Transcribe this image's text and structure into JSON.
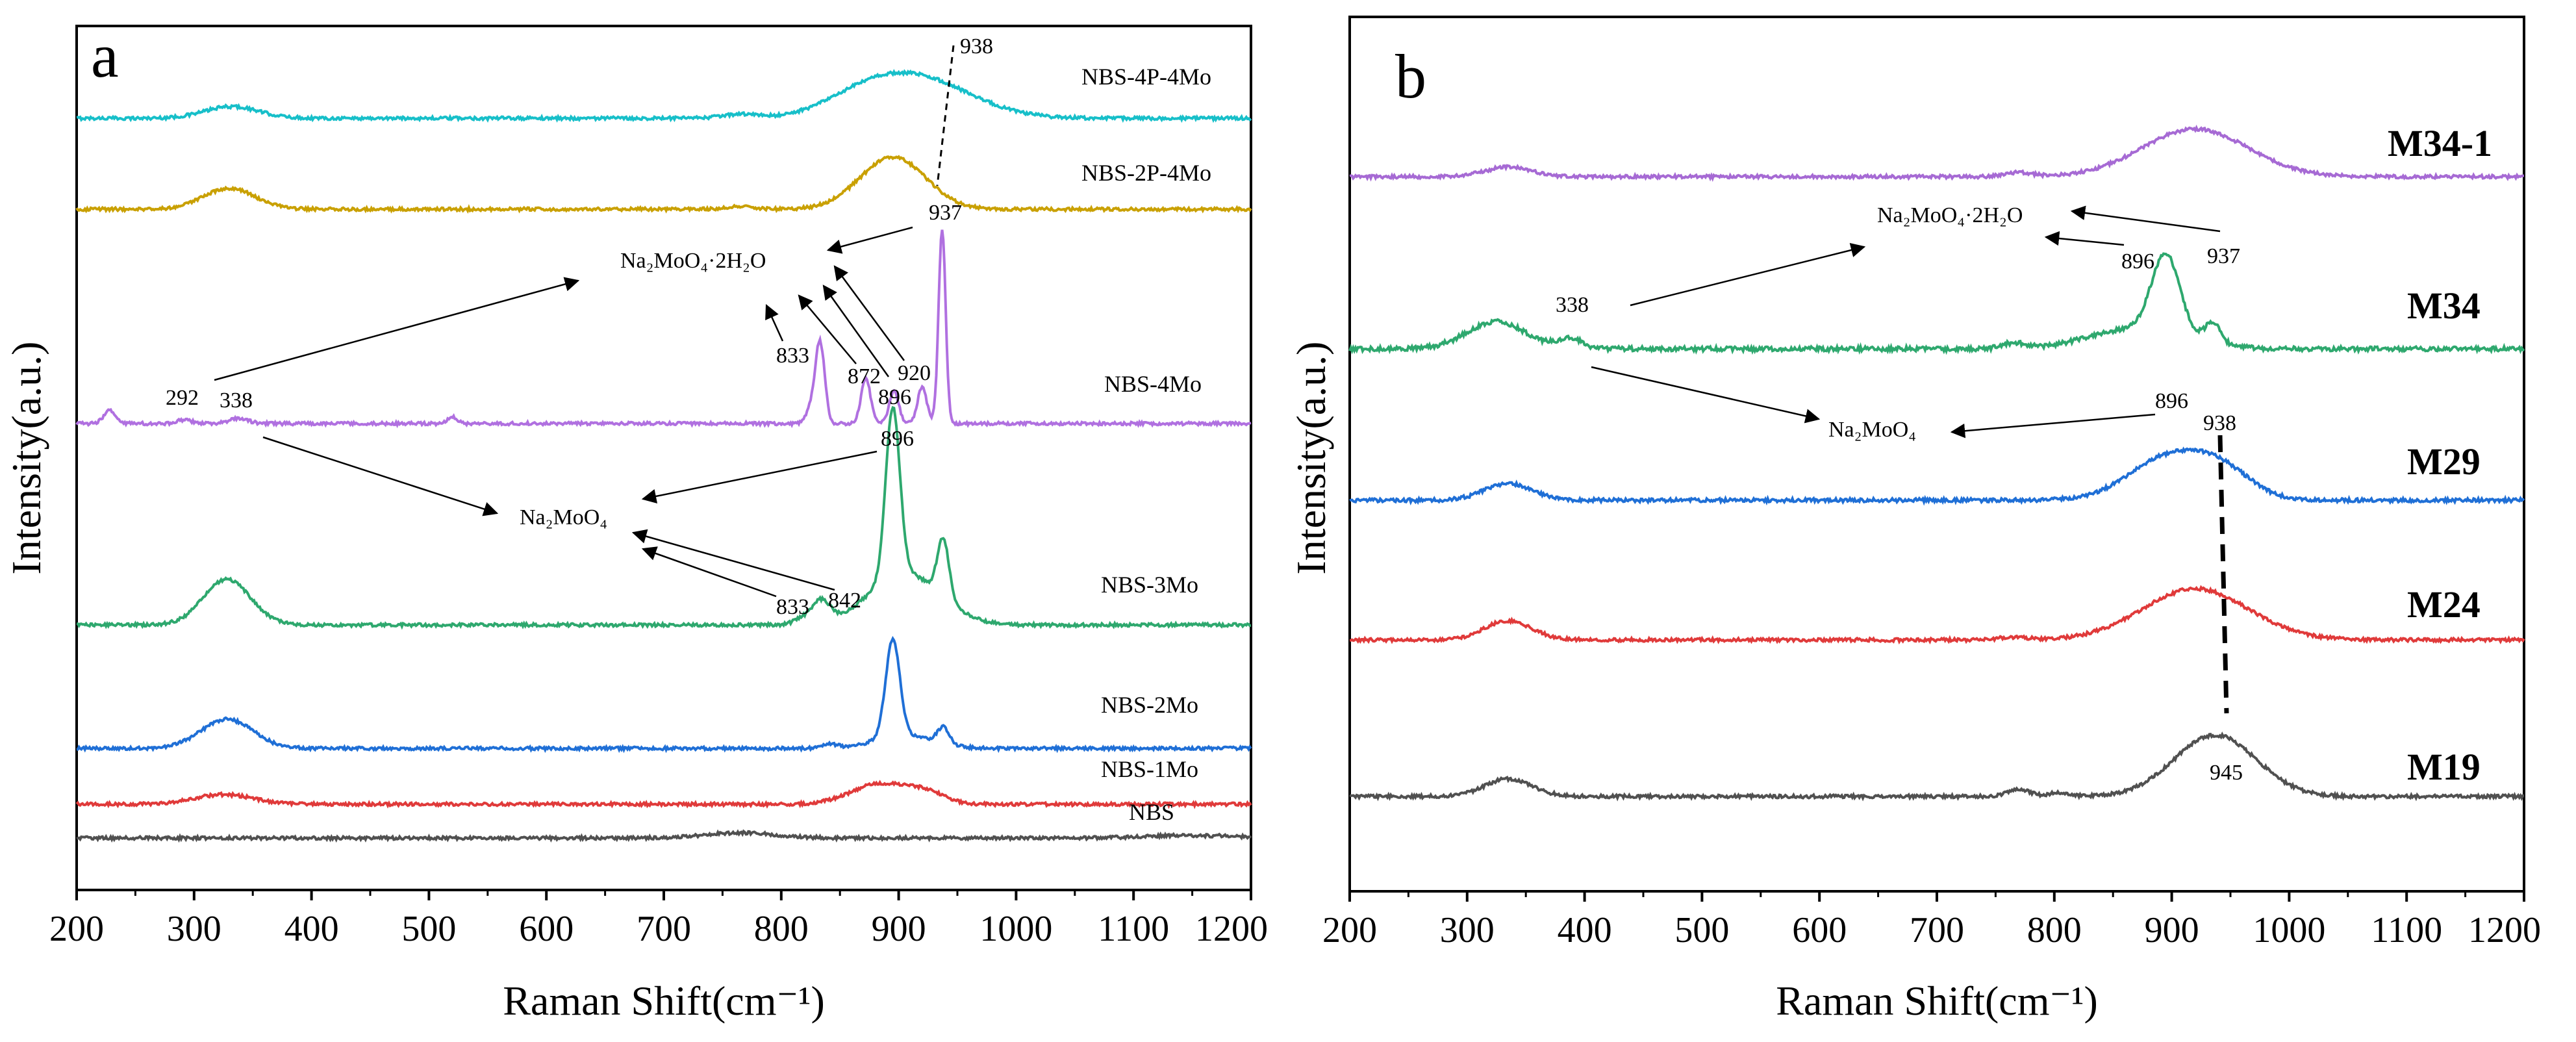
{
  "chart_data": [
    {
      "type": "line",
      "panel": "a",
      "xlabel": "Raman Shift(cm⁻¹)",
      "ylabel": "Intensity(a.u.)",
      "xlim": [
        200,
        1200
      ],
      "xticks": [
        200,
        300,
        400,
        500,
        600,
        700,
        800,
        900,
        1000,
        1100,
        1200
      ],
      "series": [
        {
          "name": "NBS-4P-4Mo",
          "color": "#17bfc9",
          "baseline": 0.0,
          "noise": 0.8,
          "peaks": [
            [
              332,
              23,
              18
            ],
            [
              765,
              15,
              6
            ],
            [
              870,
              35,
              24
            ],
            [
              918,
              45,
              58
            ]
          ]
        },
        {
          "name": "NBS-2P-4Mo",
          "color": "#c9a000",
          "baseline": 0.0,
          "noise": 0.8,
          "peaks": [
            [
              330,
              22,
              32
            ],
            [
              765,
              12,
              4
            ],
            [
              895,
              28,
              80
            ]
          ]
        },
        {
          "name": "NBS-4Mo",
          "color": "#b070e0",
          "baseline": 0.0,
          "noise": 0.8,
          "peaks": [
            [
              228,
              5,
              20
            ],
            [
              292,
              6,
              6
            ],
            [
              338,
              8,
              8
            ],
            [
              520,
              4,
              10
            ],
            [
              825,
              4,
              20
            ],
            [
              833,
              4,
              125
            ],
            [
              872,
              4,
              70
            ],
            [
              896,
              4,
              50
            ],
            [
              920,
              4,
              55
            ],
            [
              937,
              3,
              300
            ]
          ]
        },
        {
          "name": "NBS-3Mo",
          "color": "#2ea86e",
          "baseline": 0.0,
          "noise": 0.8,
          "peaks": [
            [
              328,
              20,
              70
            ],
            [
              820,
              8,
              12
            ],
            [
              833,
              6,
              30
            ],
            [
              842,
              5,
              10
            ],
            [
              895,
              6,
              260
            ],
            [
              905,
              30,
              80
            ],
            [
              938,
              5,
              90
            ]
          ]
        },
        {
          "name": "NBS-2Mo",
          "color": "#1f6fd6",
          "baseline": 0.0,
          "noise": 0.8,
          "peaks": [
            [
              328,
              22,
              45
            ],
            [
              842,
              6,
              6
            ],
            [
              895,
              6,
              150
            ],
            [
              905,
              25,
              20
            ],
            [
              938,
              5,
              25
            ]
          ]
        },
        {
          "name": "NBS-1Mo",
          "color": "#e03a3a",
          "baseline": 0.0,
          "noise": 0.8,
          "peaks": [
            [
              325,
              25,
              15
            ],
            [
              885,
              25,
              32
            ],
            [
              925,
              15,
              15
            ]
          ]
        },
        {
          "name": "NBS",
          "color": "#505050",
          "baseline": 0.0,
          "noise": 0.8,
          "peaks": [
            [
              765,
              30,
              8
            ],
            [
              1150,
              40,
              4
            ]
          ]
        }
      ],
      "annotations": {
        "peak_938": "938",
        "peak_937": "937",
        "compound_hydrate": "Na₂MoO₄·2H₂O",
        "n292": "292",
        "n338": "338",
        "n833a": "833",
        "n872": "872",
        "n896a": "896",
        "n920": "920",
        "n896b": "896",
        "compound_anhydrous": "Na₂MoO₄",
        "n833b": "833",
        "n842": "842"
      }
    },
    {
      "type": "line",
      "panel": "b",
      "xlabel": "Raman Shift(cm⁻¹)",
      "ylabel": "Intensity(a.u.)",
      "xlim": [
        200,
        1200
      ],
      "xticks": [
        200,
        300,
        400,
        500,
        600,
        700,
        800,
        900,
        1000,
        1100,
        1200
      ],
      "series": [
        {
          "name": "M34-1",
          "color": "#a66ad4",
          "baseline": 0.0,
          "noise": 0.8,
          "peaks": [
            [
              335,
              20,
              14
            ],
            [
              770,
              12,
              6
            ],
            [
              920,
              45,
              70
            ]
          ]
        },
        {
          "name": "M34",
          "color": "#2ea86e",
          "baseline": 0.0,
          "noise": 1.1,
          "peaks": [
            [
              325,
              25,
              40
            ],
            [
              388,
              10,
              15
            ],
            [
              765,
              10,
              8
            ],
            [
              895,
              12,
              115
            ],
            [
              870,
              40,
              30
            ],
            [
              935,
              7,
              30
            ]
          ]
        },
        {
          "name": "M29",
          "color": "#1f6fd6",
          "baseline": 0.0,
          "noise": 0.9,
          "peaks": [
            [
              335,
              20,
              25
            ],
            [
              900,
              35,
              65
            ],
            [
              945,
              25,
              30
            ]
          ]
        },
        {
          "name": "M24",
          "color": "#e03a3a",
          "baseline": 0.0,
          "noise": 0.8,
          "peaks": [
            [
              335,
              20,
              28
            ],
            [
              765,
              12,
              4
            ],
            [
              920,
              45,
              75
            ]
          ]
        },
        {
          "name": "M19",
          "color": "#505050",
          "baseline": 0.0,
          "noise": 0.8,
          "peaks": [
            [
              335,
              20,
              26
            ],
            [
              770,
              10,
              10
            ],
            [
              805,
              8,
              6
            ],
            [
              937,
              35,
              90
            ]
          ]
        }
      ],
      "annotations": {
        "compound_hydrate": "Na₂MoO₄·2H₂O",
        "n896a": "896",
        "n937": "937",
        "n338": "338",
        "compound_anhydrous": "Na₂MoO₄",
        "n896b": "896",
        "n938": "938",
        "n945": "945"
      }
    }
  ],
  "panel_letters": {
    "a": "a",
    "b": "b"
  }
}
